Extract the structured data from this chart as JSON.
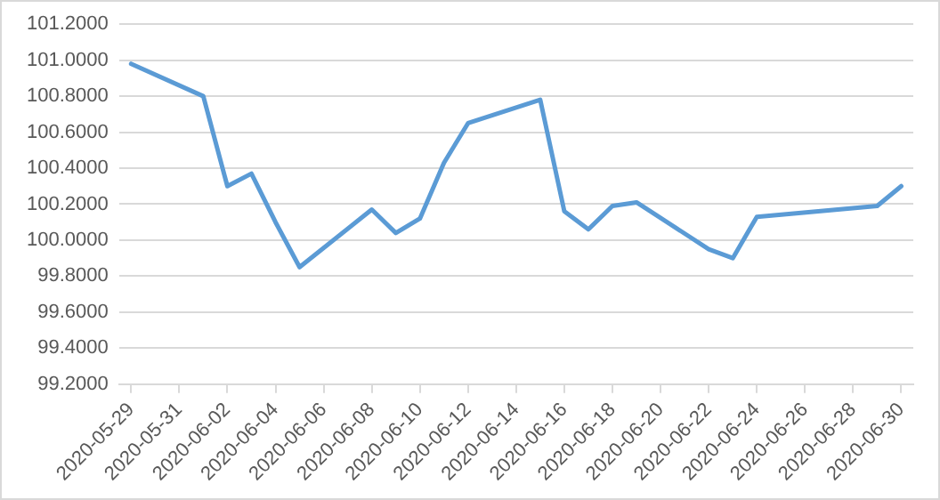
{
  "chart_data": {
    "type": "line",
    "x": [
      "2020-05-29",
      "2020-06-01",
      "2020-06-02",
      "2020-06-03",
      "2020-06-04",
      "2020-06-05",
      "2020-06-08",
      "2020-06-09",
      "2020-06-10",
      "2020-06-11",
      "2020-06-12",
      "2020-06-15",
      "2020-06-16",
      "2020-06-17",
      "2020-06-18",
      "2020-06-19",
      "2020-06-22",
      "2020-06-23",
      "2020-06-24",
      "2020-06-29",
      "2020-06-30"
    ],
    "series": [
      {
        "color": "#5b9bd5",
        "values": [
          100.98,
          100.8,
          100.3,
          100.37,
          100.1,
          99.85,
          100.17,
          100.04,
          100.12,
          100.43,
          100.65,
          100.78,
          100.16,
          100.06,
          100.19,
          100.21,
          99.95,
          99.9,
          100.13,
          100.19,
          100.3
        ]
      }
    ],
    "xlim": [
      "2020-05-28T12:00",
      "2020-06-30T12:00"
    ],
    "xticks": [
      "2020-05-29",
      "2020-05-31",
      "2020-06-02",
      "2020-06-04",
      "2020-06-06",
      "2020-06-08",
      "2020-06-10",
      "2020-06-12",
      "2020-06-14",
      "2020-06-16",
      "2020-06-18",
      "2020-06-20",
      "2020-06-22",
      "2020-06-24",
      "2020-06-26",
      "2020-06-28",
      "2020-06-30"
    ],
    "ylim": [
      99.2,
      101.2
    ],
    "yticks": [
      {
        "value": 99.2,
        "label": "99.2000"
      },
      {
        "value": 99.4,
        "label": "99.4000"
      },
      {
        "value": 99.6,
        "label": "99.6000"
      },
      {
        "value": 99.8,
        "label": "99.8000"
      },
      {
        "value": 100,
        "label": "100.0000"
      },
      {
        "value": 100.2,
        "label": "100.2000"
      },
      {
        "value": 100.4,
        "label": "100.4000"
      },
      {
        "value": 100.6,
        "label": "100.6000"
      },
      {
        "value": 100.8,
        "label": "100.8000"
      },
      {
        "value": 101,
        "label": "101.0000"
      },
      {
        "value": 101.2,
        "label": "101.2000"
      }
    ],
    "grid": "y",
    "legend": false,
    "marker": "none",
    "line_style": "solid"
  }
}
